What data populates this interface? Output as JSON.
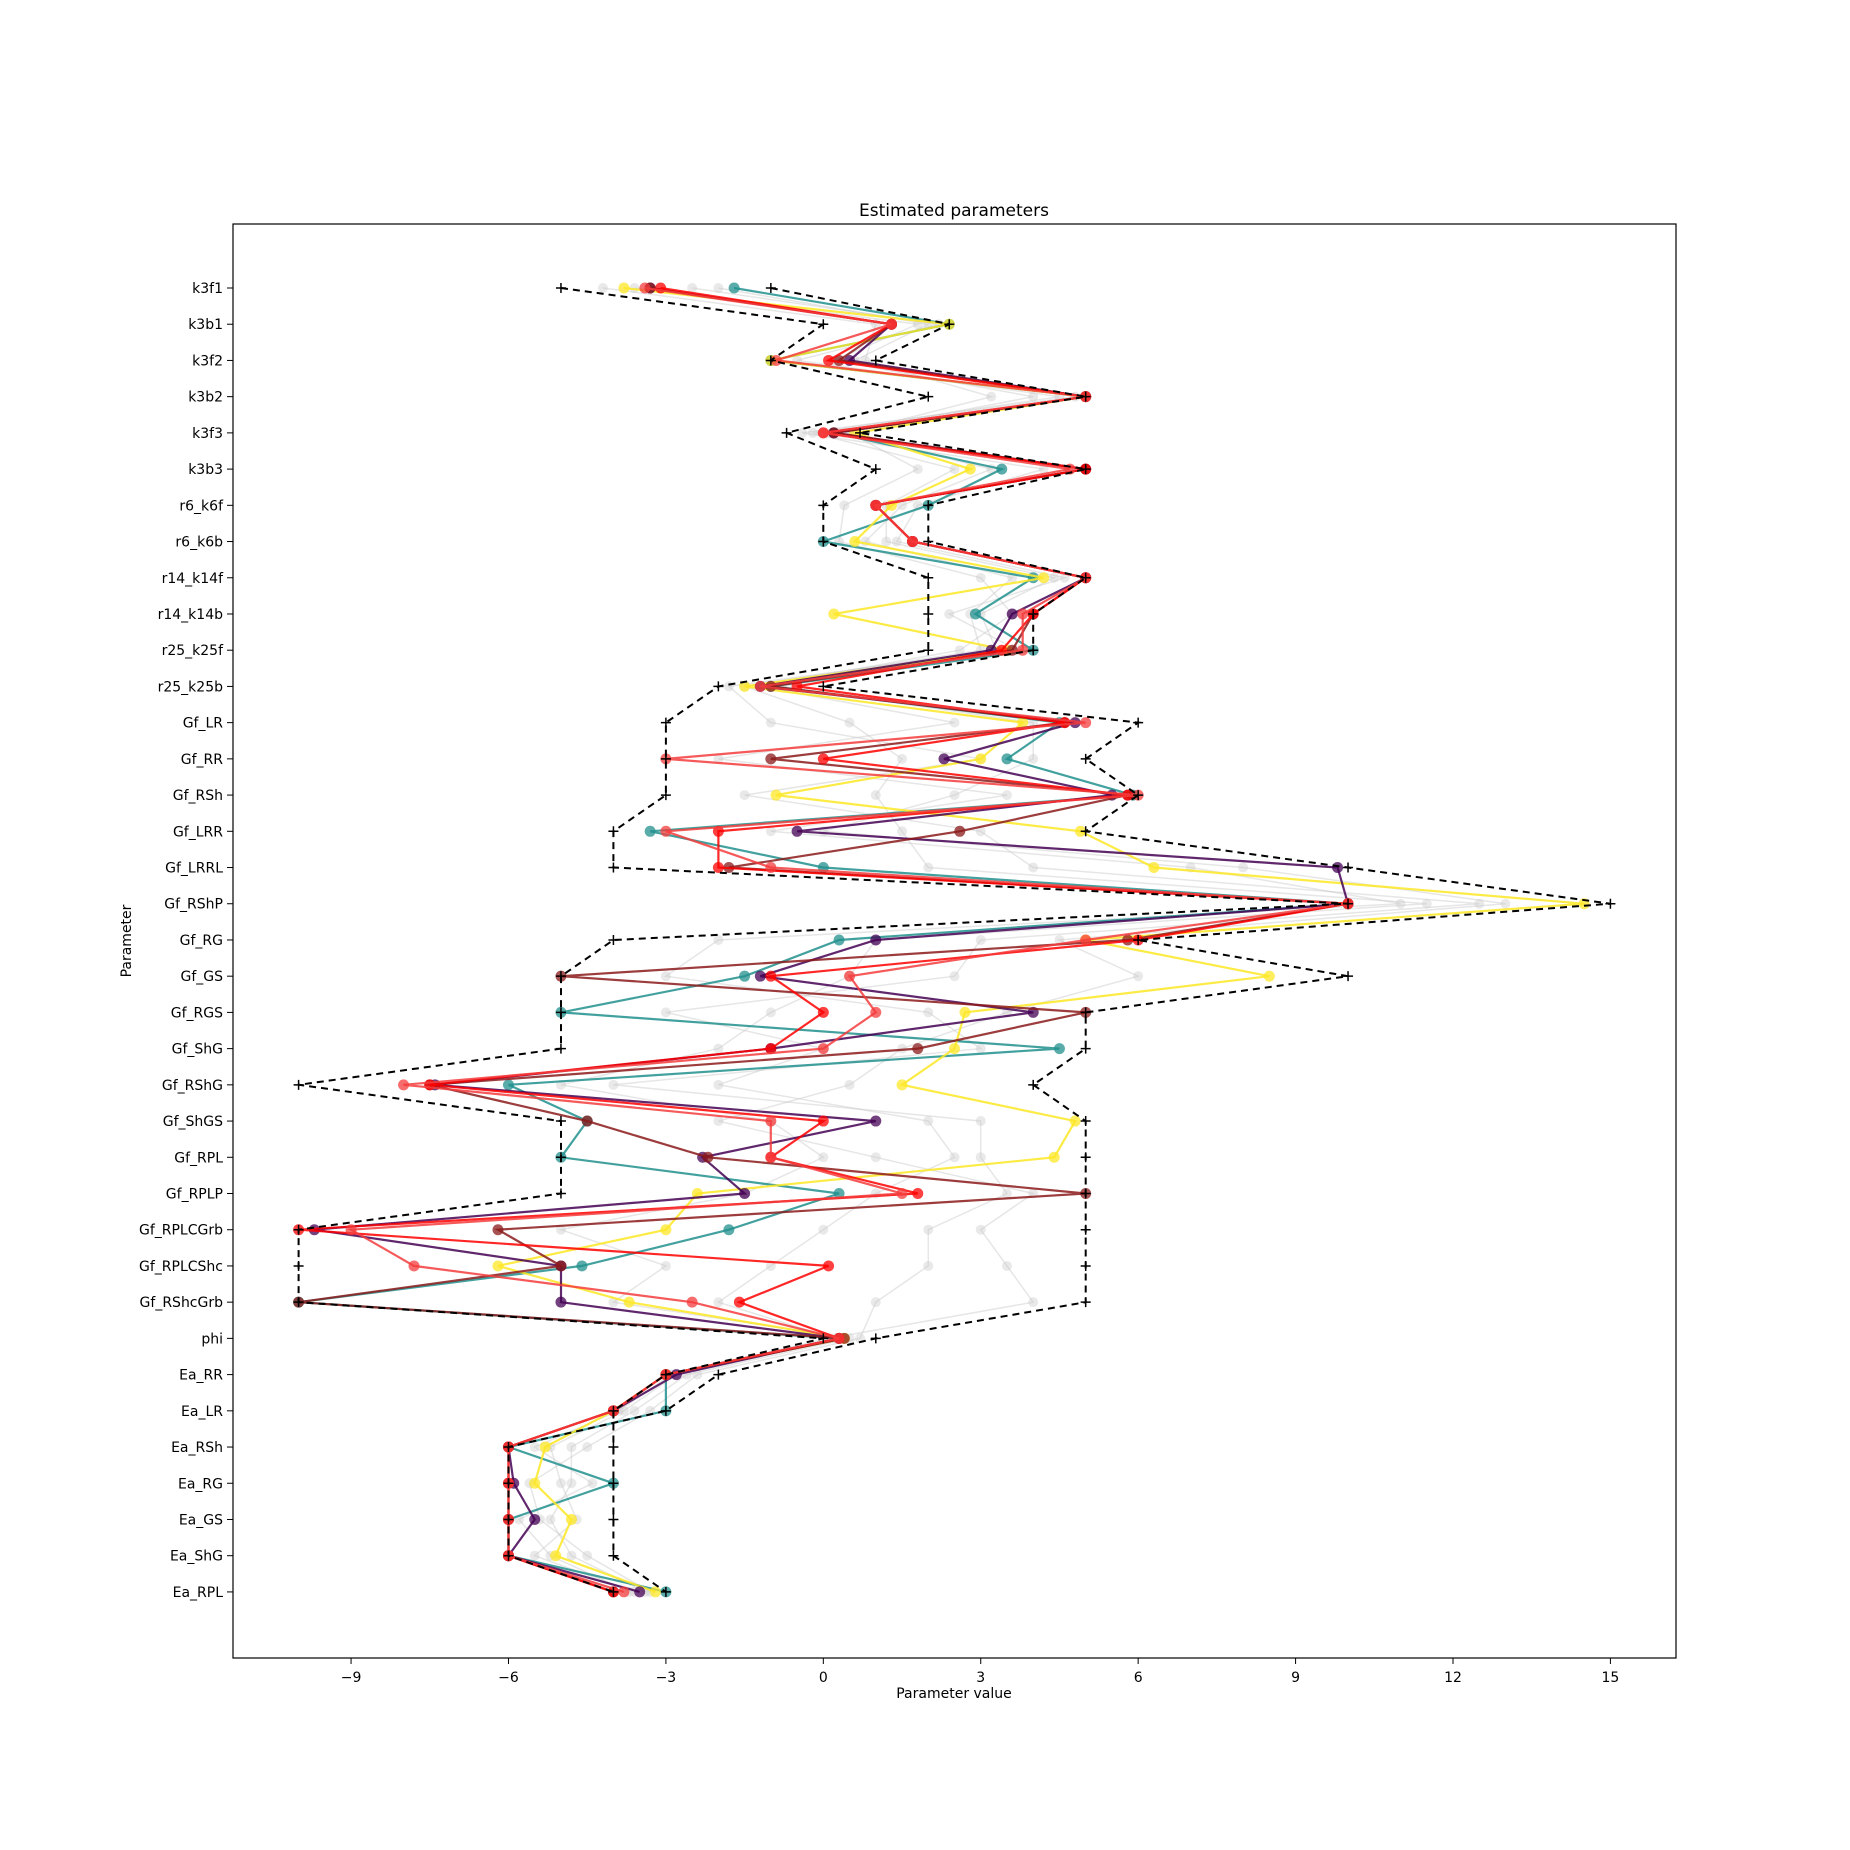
{
  "chart_data": {
    "type": "line",
    "title": "Estimated parameters",
    "xlabel": "Parameter value",
    "ylabel": "Parameter",
    "xlim": [
      -11.25,
      16.25
    ],
    "xticks": [
      -9,
      -6,
      -3,
      0,
      3,
      6,
      9,
      12,
      15
    ],
    "grid": false,
    "parameters": [
      "k3f1",
      "k3b1",
      "k3f2",
      "k3b2",
      "k3f3",
      "k3b3",
      "r6_k6f",
      "r6_k6b",
      "r14_k14f",
      "r14_k14b",
      "r25_k25f",
      "r25_k25b",
      "Gf_LR",
      "Gf_RR",
      "Gf_RSh",
      "Gf_LRR",
      "Gf_LRRL",
      "Gf_RShP",
      "Gf_RG",
      "Gf_GS",
      "Gf_RGS",
      "Gf_ShG",
      "Gf_RShG",
      "Gf_ShGS",
      "Gf_RPL",
      "Gf_RPLP",
      "Gf_RPLCGrb",
      "Gf_RPLCShc",
      "Gf_RShcGrb",
      "phi",
      "Ea_RR",
      "Ea_LR",
      "Ea_RSh",
      "Ea_RG",
      "Ea_GS",
      "Ea_ShG",
      "Ea_RPL"
    ],
    "bounds": {
      "lower": [
        -5,
        0,
        -1,
        2,
        -0.7,
        1,
        0,
        0,
        2,
        2,
        2,
        -2,
        -3,
        -3,
        -3,
        -4,
        -4,
        10,
        -4,
        -5,
        -5,
        -5,
        -10,
        -5,
        -5,
        -5,
        -10,
        -10,
        -10,
        0,
        -3,
        -4,
        -4,
        -4,
        -4,
        -4,
        -3
      ],
      "upper": [
        -1,
        2.4,
        1,
        5,
        0.7,
        5,
        2,
        2,
        5,
        4,
        4,
        0,
        6,
        5,
        6,
        5,
        10,
        15,
        6,
        10,
        5,
        5,
        4,
        5,
        5,
        5,
        5,
        5,
        5,
        1,
        -2,
        -3,
        -6,
        -6,
        -6,
        -6,
        -4
      ]
    },
    "series": [
      {
        "color": "#21908d",
        "values": [
          -1.7,
          2.4,
          -1,
          5,
          0.2,
          3.4,
          2,
          0,
          4,
          2.9,
          4,
          -1,
          4.5,
          3.5,
          5.9,
          -3.3,
          0,
          10,
          0.3,
          -1.5,
          -5,
          4.5,
          -6,
          -4.5,
          -5,
          0.3,
          -1.8,
          -4.6,
          -10,
          0.3,
          -3,
          -3,
          -6,
          -4,
          -6,
          -6,
          -3
        ]
      },
      {
        "color": "#fde725",
        "values": [
          -3.8,
          2.4,
          -1,
          5,
          0.6,
          2.8,
          1.3,
          0.6,
          4.2,
          0.2,
          3.5,
          -1.5,
          3.8,
          3,
          -0.9,
          4.9,
          6.3,
          14.5,
          5,
          8.5,
          2.7,
          2.5,
          1.5,
          4.8,
          4.4,
          -2.4,
          -3,
          -6.2,
          -3.7,
          0.4,
          -3,
          -4,
          -5.3,
          -5.5,
          -4.8,
          -5.1,
          -3.2
        ]
      },
      {
        "color": "#440154",
        "values": [
          -3.3,
          1.3,
          0.5,
          5,
          0.2,
          5,
          1,
          1.7,
          5,
          3.6,
          3.2,
          -1.2,
          4.8,
          2.3,
          5.5,
          -0.5,
          9.8,
          10,
          1,
          -1.2,
          4,
          -1,
          -7.4,
          1,
          -2.3,
          -1.5,
          -9.7,
          -5,
          -5,
          0.3,
          -2.8,
          -4,
          -6,
          -5.9,
          -5.5,
          -6,
          -3.5
        ]
      },
      {
        "color": "#8b1a1a",
        "values": [
          -3.3,
          1.3,
          0.3,
          5,
          0.2,
          5,
          1,
          1.7,
          5,
          4,
          3.6,
          -1,
          4.6,
          -1,
          5.8,
          2.6,
          -1.8,
          10,
          5.8,
          -5,
          5,
          1.8,
          -7.5,
          -4.5,
          -2.2,
          5,
          -6.2,
          -5,
          -10,
          0.4,
          -3,
          -4,
          -6,
          -6,
          -6,
          -6,
          -4
        ]
      },
      {
        "color": "#ff0000",
        "values": [
          -3.1,
          1.3,
          0.1,
          5,
          0,
          5,
          1,
          1.7,
          5,
          4,
          3.4,
          -0.5,
          4.6,
          0,
          5.8,
          -2,
          -2,
          10,
          6,
          -1,
          0,
          -1,
          -7.5,
          0,
          -1,
          1.8,
          -10,
          0.1,
          -1.6,
          0.3,
          -3,
          -4,
          -6,
          -6,
          -6,
          -6,
          -4
        ]
      },
      {
        "color": "#f43c3c",
        "values": [
          -3.4,
          1.3,
          -0.9,
          5,
          0,
          4.7,
          1,
          1.7,
          5,
          3.8,
          3.8,
          -1.2,
          5,
          -3,
          6,
          -3,
          -1,
          10,
          5,
          0.5,
          1,
          0,
          -8,
          -1,
          -1,
          1.5,
          -9,
          -7.8,
          -2.5,
          0.3,
          -3,
          -4,
          -6,
          -6,
          -6,
          -6,
          -3.8
        ]
      }
    ],
    "background_series": [
      {
        "values": [
          -3.6,
          1.8,
          0.2,
          4,
          0.4,
          3.2,
          1.5,
          0.8,
          3.6,
          2.8,
          3.0,
          -1.5,
          0.5,
          1.5,
          1.0,
          1.5,
          2.0,
          11.5,
          1.0,
          0.5,
          -1.0,
          -2.0,
          -5.0,
          -1.0,
          0.0,
          -1.5,
          -5.0,
          -3.0,
          -4.0,
          0.5,
          -2.6,
          -3.6,
          -4.8,
          -4.8,
          -5.2,
          -4.8,
          -3.4
        ]
      },
      {
        "values": [
          -2.5,
          2.2,
          -0.5,
          4.5,
          -0.2,
          2.5,
          1.2,
          1.2,
          4.4,
          3.0,
          3.3,
          -1.8,
          -1.0,
          3.0,
          -1.5,
          3.0,
          4.0,
          12.5,
          3.0,
          2.5,
          -3.0,
          0.0,
          -2.0,
          2.0,
          2.5,
          1.0,
          0.0,
          -1.0,
          -2.0,
          0.2,
          -2.8,
          -3.8,
          -5.2,
          -5.0,
          -4.7,
          -5.5,
          -3.6
        ]
      },
      {
        "values": [
          -4.2,
          1.0,
          0.8,
          3.2,
          0.5,
          1.8,
          0.4,
          0.3,
          3.0,
          3.6,
          2.6,
          -1.2,
          2.5,
          -2.0,
          3.5,
          -1.0,
          7.0,
          11.0,
          -2.0,
          -3.0,
          2.0,
          3.0,
          -4.0,
          3.0,
          3.0,
          3.5,
          2.0,
          2.0,
          1.0,
          0.7,
          -2.4,
          -3.3,
          -4.5,
          -5.6,
          -5.4,
          -4.5,
          -3.3
        ]
      },
      {
        "values": [
          -2.0,
          2.0,
          0.6,
          4.8,
          -0.4,
          4.2,
          1.8,
          1.4,
          4.6,
          2.4,
          3.7,
          -0.8,
          4.0,
          4.0,
          2.5,
          0.0,
          8.0,
          13.0,
          4.5,
          6.0,
          3.5,
          1.5,
          0.5,
          -2.0,
          1.0,
          4.0,
          3.0,
          3.5,
          4.0,
          0.1,
          -2.9,
          -3.9,
          -5.5,
          -4.4,
          -5.8,
          -5.2,
          -3.7
        ]
      }
    ]
  }
}
